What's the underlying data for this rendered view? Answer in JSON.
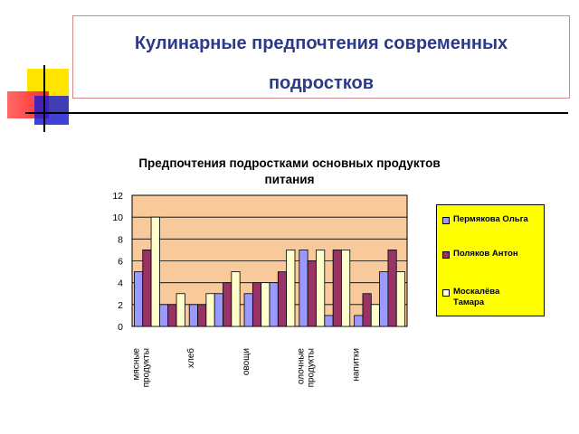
{
  "slide": {
    "title_line1": "Кулинарные предпочтения современных",
    "title_line2": "подростков"
  },
  "decor": {
    "colors": {
      "yellow": "#ffe400",
      "red": "#ff2a2a",
      "blue": "#2020d0",
      "line": "#000000"
    }
  },
  "chart_data": {
    "type": "bar",
    "title_line1": "Предпочтения подростками основных продуктов",
    "title_line2": "питания",
    "categories": [
      [
        "мясные",
        "продукты"
      ],
      [
        "хлеб"
      ],
      [
        "овощи"
      ],
      [
        "олочные",
        "продукты"
      ],
      [
        "напитки"
      ]
    ],
    "series": [
      {
        "name": "Пермякова Ольга",
        "color": "#9999ff",
        "values": [
          5,
          2,
          3,
          7,
          1
        ]
      },
      {
        "name": "Поляков Антон",
        "color": "#993366",
        "values": [
          7,
          2,
          4,
          6,
          3
        ]
      },
      {
        "name": "Москалёва Тамара",
        "color": "#ffffcc",
        "values": [
          10,
          3,
          4,
          7,
          2
        ]
      },
      {
        "name": "",
        "color": "#9999ff",
        "values": [
          2,
          3,
          4,
          1,
          5
        ]
      },
      {
        "name": "",
        "color": "#993366",
        "values": [
          2,
          4,
          5,
          7,
          7
        ]
      },
      {
        "name": "",
        "color": "#ffffcc",
        "values": [
          3,
          5,
          7,
          7,
          5
        ]
      }
    ],
    "ylim": [
      0,
      12
    ],
    "yticks": [
      "0",
      "2",
      "4",
      "6",
      "8",
      "10",
      "12"
    ],
    "plot_bg": "#f8c99a",
    "grid": true,
    "legend_position": "right",
    "legend_bg": "#ffff00",
    "legend": [
      "Пермякова Ольга",
      "Поляков Антон",
      "Москалёва\nТамара"
    ]
  }
}
